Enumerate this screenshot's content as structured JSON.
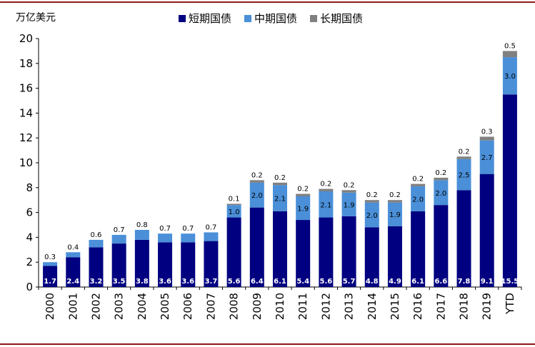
{
  "chart_data": {
    "type": "bar",
    "stacked": true,
    "unit": "万亿美元",
    "ylim": [
      0,
      20
    ],
    "yticks": [
      "0",
      "2",
      "4",
      "6",
      "8",
      "10",
      "12",
      "14",
      "16",
      "18",
      "20"
    ],
    "categories": [
      "2000",
      "2001",
      "2002",
      "2003",
      "2004",
      "2005",
      "2006",
      "2007",
      "2008",
      "2009",
      "2010",
      "2011",
      "2012",
      "2013",
      "2014",
      "2015",
      "2016",
      "2017",
      "2018",
      "2019",
      "YTD"
    ],
    "series": [
      {
        "name": "短期国债",
        "color": "#000080",
        "values": [
          1.7,
          2.4,
          3.2,
          3.5,
          3.8,
          3.6,
          3.6,
          3.7,
          5.6,
          6.4,
          6.1,
          5.4,
          5.6,
          5.7,
          4.8,
          4.9,
          6.1,
          6.6,
          7.8,
          9.1,
          15.5
        ],
        "labels": [
          "1.7",
          "2.4",
          "3.2",
          "3.5",
          "3.8",
          "3.6",
          "3.6",
          "3.7",
          "5.6",
          "6.4",
          "6.1",
          "5.4",
          "5.6",
          "5.7",
          "4.8",
          "4.9",
          "6.1",
          "6.6",
          "7.8",
          "9.1",
          "15.5"
        ]
      },
      {
        "name": "中期国债",
        "color": "#4a8fd8",
        "values": [
          0.3,
          0.4,
          0.6,
          0.7,
          0.8,
          0.7,
          0.7,
          0.7,
          1.0,
          2.0,
          2.1,
          1.9,
          2.1,
          1.9,
          2.0,
          1.9,
          2.0,
          2.0,
          2.5,
          2.7,
          3.0
        ],
        "labels": [
          "0.3",
          "0.4",
          "0.6",
          "0.7",
          "0.8",
          "0.7",
          "0.7",
          "0.7",
          "1.0",
          "2.0",
          "2.1",
          "1.9",
          "2.1",
          "1.9",
          "2.0",
          "1.9",
          "2.0",
          "2.0",
          "2.5",
          "2.7",
          "3.0"
        ]
      },
      {
        "name": "长期国债",
        "color": "#808080",
        "values": [
          0,
          0,
          0,
          0,
          0,
          0,
          0,
          0,
          0.1,
          0.2,
          0.2,
          0.2,
          0.2,
          0.2,
          0.2,
          0.2,
          0.2,
          0.2,
          0.2,
          0.3,
          0.5
        ],
        "labels": [
          "",
          "",
          "",
          "",
          "",
          "",
          "",
          "",
          "0.1",
          "0.2",
          "0.2",
          "0.2",
          "0.2",
          "0.2",
          "0.2",
          "0.2",
          "0.2",
          "0.2",
          "0.2",
          "0.3",
          "0.5"
        ]
      }
    ]
  }
}
